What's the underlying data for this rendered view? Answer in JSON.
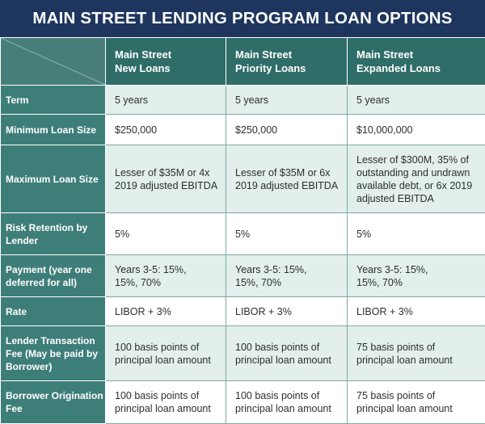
{
  "title": "MAIN STREET LENDING PROGRAM LOAN OPTIONS",
  "columns": [
    {
      "line1": "Main Street",
      "line2": "New Loans"
    },
    {
      "line1": "Main Street",
      "line2": "Priority Loans"
    },
    {
      "line1": "Main Street",
      "line2": "Expanded Loans"
    }
  ],
  "rows": [
    {
      "label": "Term",
      "cells": [
        "5 years",
        "5 years",
        "5 years"
      ]
    },
    {
      "label": "Minimum Loan Size",
      "cells": [
        "$250,000",
        "$250,000",
        "$10,000,000"
      ]
    },
    {
      "label": "Maximum Loan Size",
      "cells": [
        "Lesser of $35M or 4x 2019 adjusted EBITDA",
        "Lesser of $35M or 6x 2019 adjusted EBITDA",
        "Lesser of $300M, 35% of outstanding and undrawn available debt, or 6x 2019 adjusted EBITDA"
      ]
    },
    {
      "label": "Risk Retention by Lender",
      "cells": [
        "5%",
        "5%",
        "5%"
      ]
    },
    {
      "label": "Payment (year one deferred for all)",
      "cells": [
        "Years 3-5: 15%, 15%, 70%",
        "Years 3-5: 15%, 15%, 70%",
        "Years 3-5: 15%, 15%, 70%"
      ]
    },
    {
      "label": "Rate",
      "cells": [
        "LIBOR + 3%",
        "LIBOR + 3%",
        "LIBOR + 3%"
      ]
    },
    {
      "label": "Lender Transaction Fee (May be paid by Borrower)",
      "cells": [
        "100 basis points of principal loan amount",
        "100 basis points of principal loan amount",
        "75 basis points of principal loan amount"
      ]
    },
    {
      "label": "Borrower Origination Fee",
      "cells": [
        "100 basis points of principal loan amount",
        "100 basis points of principal loan amount",
        "75 basis points of principal loan amount"
      ]
    }
  ],
  "colors": {
    "title_bg": "#1e355e",
    "header_bg": "#2f6d68",
    "label_bg": "#3e7e79",
    "light_row": "#e2efed",
    "white_row": "#ffffff"
  }
}
